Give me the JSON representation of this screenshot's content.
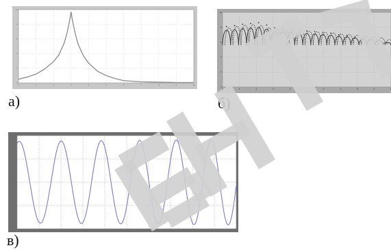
{
  "labels": {
    "a": "а)",
    "b": "б)",
    "c": "в)"
  },
  "watermark": {
    "text": "БНТУ",
    "color": "#cfcfcf"
  },
  "colors": {
    "frame_a": "#c7c7c7",
    "plot_bg_a": "#ffffff",
    "grid_a": "#d9d9d9",
    "line_a": "#8a8a8a",
    "frame_b": "#a9a9a9",
    "plot_bg_b": "#d3d3d3",
    "grid_b": "#b8b8b8",
    "line_b": "#3a3a3a",
    "frame_c": "#6e6e6e",
    "plot_bg_c": "#ffffff",
    "grid_c": "#9a9a9a",
    "line_c": "#7b7bcc"
  },
  "chart_data": [
    {
      "type": "line",
      "id": "a",
      "title": "",
      "xlabel": "",
      "ylabel": "",
      "xlim": [
        0,
        10
      ],
      "ylim": [
        0,
        10
      ],
      "x_ticks": [
        "0",
        "1",
        "2",
        "3",
        "4",
        "5",
        "6",
        "7",
        "8",
        "9",
        "10"
      ],
      "y_ticks": [
        "0",
        "2",
        "4",
        "6",
        "8",
        "10"
      ],
      "grid": true,
      "series": [
        {
          "x": [
            0,
            0.5,
            1,
            1.5,
            2,
            2.3,
            2.6,
            2.75,
            2.85,
            2.95,
            3.0,
            3.05,
            3.15,
            3.25,
            3.4,
            3.7,
            4.0,
            4.5,
            5.0,
            5.5,
            6,
            7,
            8,
            9,
            10
          ],
          "y": [
            0.5,
            0.8,
            1.2,
            1.9,
            2.9,
            3.8,
            5.4,
            6.6,
            7.7,
            8.9,
            9.7,
            8.9,
            7.7,
            6.6,
            5.3,
            3.7,
            2.7,
            1.6,
            1.0,
            0.6,
            0.3,
            0.15,
            0.1,
            0.05,
            0.05
          ]
        }
      ]
    },
    {
      "type": "line",
      "id": "b",
      "title": "",
      "xlabel": "",
      "ylabel": "",
      "xlim": [
        0,
        10
      ],
      "ylim": [
        0,
        10
      ],
      "x_ticks": [
        "0",
        "1",
        "2",
        "3",
        "4",
        "5",
        "6",
        "7",
        "8",
        "9",
        "10"
      ],
      "y_ticks": [
        "0",
        "2",
        "4",
        "6",
        "8",
        "10"
      ],
      "grid": true,
      "lobes": {
        "count": 21,
        "peaks_solid": [
          8.2,
          8.3,
          8.5,
          8.6,
          8.7,
          8.4,
          8.0,
          7.9,
          7.8,
          7.7,
          7.6,
          7.5,
          7.4,
          7.3,
          7.1,
          7.0,
          6.8,
          6.6,
          6.5,
          6.4,
          6.0
        ],
        "peaks_dashed": [
          8.6,
          8.9,
          9.1,
          9.2,
          9.0,
          8.6,
          8.4,
          8.3,
          8.2,
          8.1,
          8.0,
          7.9,
          7.8,
          7.7,
          7.5,
          7.4,
          7.3,
          7.1,
          7.0,
          6.8,
          6.5
        ],
        "trough": 5.6
      }
    },
    {
      "type": "line",
      "id": "c",
      "title": "",
      "xlabel": "",
      "ylabel": "",
      "xlim": [
        0,
        10
      ],
      "ylim": [
        -1.2,
        1.2
      ],
      "x_ticks": [
        "0",
        "1",
        "2",
        "3",
        "4",
        "5",
        "6",
        "7",
        "8",
        "9",
        "10"
      ],
      "y_ticks": [
        "1",
        "0.5",
        "0",
        "-0.5",
        "-1"
      ],
      "grid": true,
      "signal": {
        "description_amplitude_start": 1.05,
        "amplitude_end": 1.1,
        "periods": [
          1.93,
          1.85,
          1.78,
          1.7,
          1.62,
          1.55
        ],
        "phase_start": 0.2
      }
    }
  ]
}
